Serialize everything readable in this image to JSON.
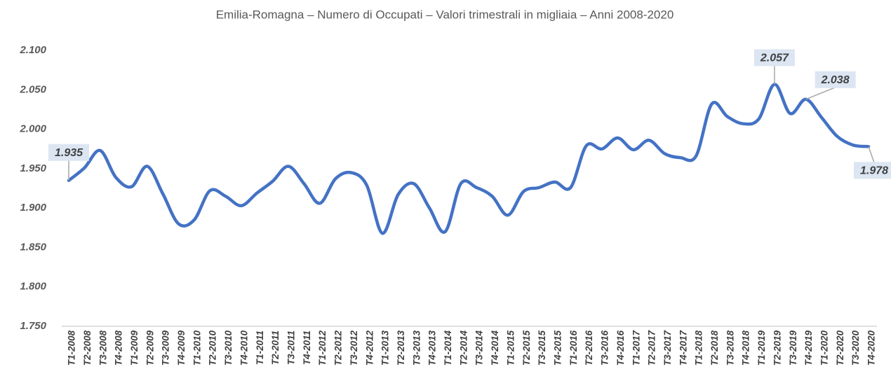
{
  "chart_data": {
    "type": "line",
    "title": "Emilia-Romagna – Numero di Occupati – Valori trimestrali in migliaia – Anni 2008-2020",
    "categories": [
      "T1-2008",
      "T2-2008",
      "T3-2008",
      "T4-2008",
      "T1-2009",
      "T2-2009",
      "T3-2009",
      "T4-2009",
      "T1-2010",
      "T2-2010",
      "T3-2010",
      "T4-2010",
      "T1-2011",
      "T2-2011",
      "T3-2011",
      "T4-2011",
      "T1-2012",
      "T2-2012",
      "T3-2012",
      "T4-2012",
      "T1-2013",
      "T2-2013",
      "T3-2013",
      "T4-2013",
      "T1-2014",
      "T2-2014",
      "T3-2014",
      "T4-2014",
      "T1-2015",
      "T2-2015",
      "T3-2015",
      "T4-2015",
      "T1-2016",
      "T2-2016",
      "T3-2016",
      "T4-2016",
      "T1-2017",
      "T2-2017",
      "T3-2017",
      "T4-2017",
      "T1-2018",
      "T2-2018",
      "T3-2018",
      "T4-2018",
      "T1-2019",
      "T2-2019",
      "T3-2019",
      "T4-2019",
      "T1-2020",
      "T2-2020",
      "T3-2020",
      "T4-2020"
    ],
    "series": [
      {
        "name": "Occupati",
        "color": "#4472c4",
        "values": [
          1935,
          1951,
          1973,
          1939,
          1927,
          1953,
          1918,
          1880,
          1885,
          1922,
          1915,
          1903,
          1919,
          1934,
          1953,
          1931,
          1906,
          1937,
          1945,
          1929,
          1868,
          1917,
          1931,
          1900,
          1870,
          1931,
          1926,
          1915,
          1891,
          1921,
          1926,
          1933,
          1926,
          1979,
          1975,
          1989,
          1974,
          1986,
          1969,
          1964,
          1966,
          2032,
          2016,
          2007,
          2013,
          2057,
          2020,
          2038,
          2015,
          1991,
          1980,
          1978
        ],
        "value_labels": [
          "1.935",
          null,
          null,
          null,
          null,
          null,
          null,
          null,
          null,
          null,
          null,
          null,
          null,
          null,
          null,
          null,
          null,
          null,
          null,
          null,
          null,
          null,
          null,
          null,
          null,
          null,
          null,
          null,
          null,
          null,
          null,
          null,
          null,
          null,
          null,
          null,
          null,
          null,
          null,
          null,
          null,
          null,
          null,
          null,
          null,
          "2.057",
          null,
          "2.038",
          null,
          null,
          null,
          "1.978"
        ]
      }
    ],
    "ylim": [
      1750,
      2100
    ],
    "yticks": [
      {
        "value": 1750,
        "label": "1.750"
      },
      {
        "value": 1800,
        "label": "1.800"
      },
      {
        "value": 1850,
        "label": "1.850"
      },
      {
        "value": 1900,
        "label": "1.900"
      },
      {
        "value": 1950,
        "label": "1.950"
      },
      {
        "value": 2000,
        "label": "2.000"
      },
      {
        "value": 2050,
        "label": "2.050"
      },
      {
        "value": 2100,
        "label": "2.100"
      }
    ],
    "grid": false
  }
}
